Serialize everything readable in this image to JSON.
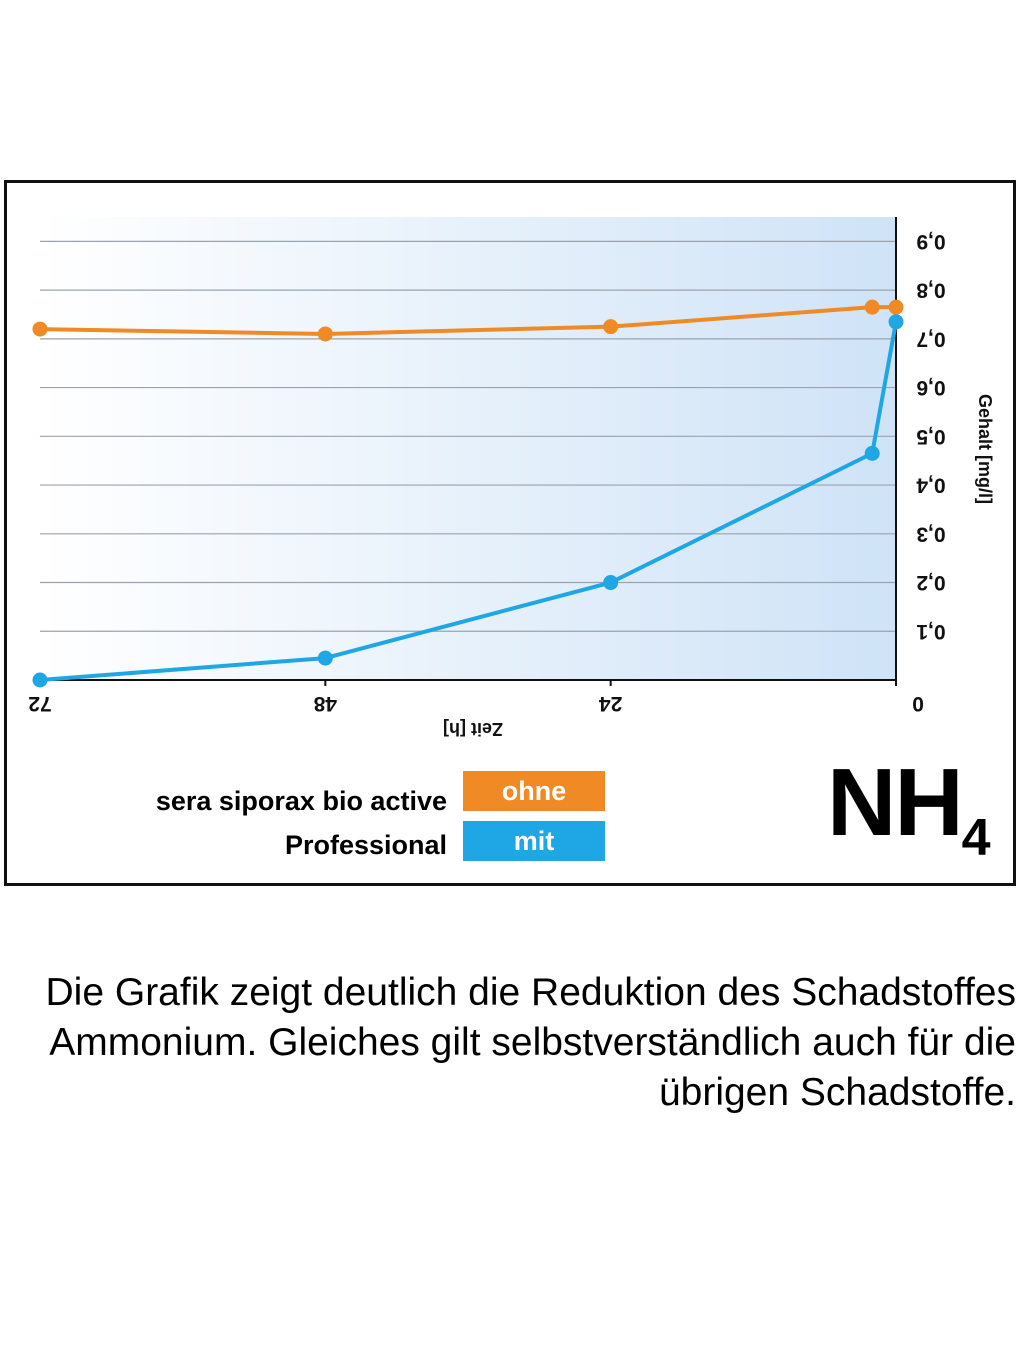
{
  "chart_data": {
    "type": "line",
    "xlabel": "Zeit [h]",
    "ylabel": "Gehalt [mg/l]",
    "x_ticks": [
      "72",
      "48",
      "24",
      "0"
    ],
    "y_ticks": [
      "0,1",
      "0,2",
      "0,3",
      "0,4",
      "0,5",
      "0,6",
      "0,7",
      "0,8",
      "0,9"
    ],
    "xlim": [
      72,
      0
    ],
    "ylim": [
      0,
      0.95
    ],
    "x_reversed": true,
    "y_axis_side": "right",
    "grid": true,
    "series": [
      {
        "name": "ohne",
        "color": "#f08a24",
        "points": [
          {
            "x": 72,
            "y": 0.72
          },
          {
            "x": 48,
            "y": 0.71
          },
          {
            "x": 24,
            "y": 0.725
          },
          {
            "x": 2,
            "y": 0.765
          },
          {
            "x": 0,
            "y": 0.765
          }
        ]
      },
      {
        "name": "mit",
        "color": "#1ea7e4",
        "points": [
          {
            "x": 72,
            "y": 0.0
          },
          {
            "x": 48,
            "y": 0.045
          },
          {
            "x": 24,
            "y": 0.2
          },
          {
            "x": 2,
            "y": 0.465
          },
          {
            "x": 0,
            "y": 0.735
          }
        ]
      }
    ]
  },
  "legend": {
    "ohne_label": "ohne",
    "mit_label": "mit",
    "product_line1": "sera siporax bio active",
    "product_line2": "Professional"
  },
  "badge": {
    "main": "NH",
    "sub": "4"
  },
  "caption": "Die Grafik zeigt deutlich die Reduktion des Schadstoffes Ammonium. Gleiches gilt selbstverständlich auch für die übrigen Schadstoffe."
}
